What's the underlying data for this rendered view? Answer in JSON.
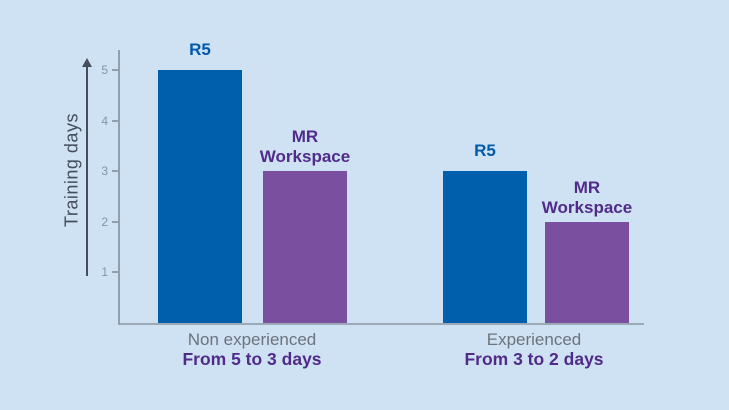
{
  "colors": {
    "background": "#cee2f4",
    "blue_bar": "#005fad",
    "purple_bar": "#7b4fa0",
    "blue_text": "#005aa9",
    "purple_text": "#512b8a",
    "gray_text": "#6d737b",
    "axis_line": "#929fab",
    "tick_text": "#8793a0",
    "arrow": "#454f5b"
  },
  "chart_data": {
    "type": "bar",
    "title": "",
    "xlabel": "",
    "ylabel": "Training days",
    "ylim": [
      0,
      5
    ],
    "yticks": [
      5,
      4,
      3,
      2,
      1
    ],
    "grid": false,
    "legend_position": "none",
    "groups": [
      {
        "category": "Non experienced",
        "subtitle": "From 5 to 3 days",
        "bars": [
          {
            "name": "R5",
            "value": 5,
            "color": "#005fad"
          },
          {
            "name": "MR Workspace",
            "value": 3,
            "color": "#7b4fa0"
          }
        ]
      },
      {
        "category": "Experienced",
        "subtitle": "From 3 to 2 days",
        "bars": [
          {
            "name": "R5",
            "value": 3,
            "color": "#005fad"
          },
          {
            "name": "MR Workspace",
            "value": 2,
            "color": "#7b4fa0"
          }
        ]
      }
    ]
  }
}
